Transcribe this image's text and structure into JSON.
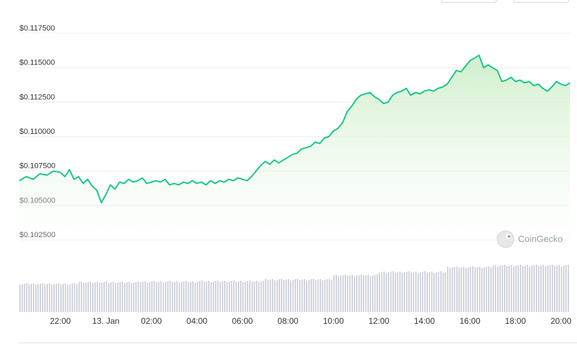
{
  "chart_data": {
    "type": "area",
    "title": "",
    "xlabel": "",
    "ylabel": "",
    "currency_prefix": "$",
    "ylim": [
      0.1015,
      0.1185
    ],
    "y_ticks": [
      "$0.117500",
      "$0.115000",
      "$0.112500",
      "$0.110000",
      "$0.107500",
      "$0.105000",
      "$0.102500"
    ],
    "y_tick_values": [
      0.1175,
      0.115,
      0.1125,
      0.11,
      0.1075,
      0.105,
      0.1025
    ],
    "x_ticks": [
      "22:00",
      "13. Jan",
      "02:00",
      "04:00",
      "06:00",
      "08:00",
      "10:00",
      "12:00",
      "14:00",
      "16:00",
      "18:00",
      "20:00"
    ],
    "x_tick_hours": [
      22,
      24,
      26,
      28,
      30,
      32,
      34,
      36,
      38,
      40,
      42,
      44
    ],
    "xlim_hours": [
      20.2,
      44.4
    ],
    "series": [
      {
        "points": [
          [
            20.2,
            0.1068
          ],
          [
            20.5,
            0.1071
          ],
          [
            20.8,
            0.1069
          ],
          [
            21.1,
            0.1073
          ],
          [
            21.4,
            0.1072
          ],
          [
            21.7,
            0.1075
          ],
          [
            22.0,
            0.1074
          ],
          [
            22.2,
            0.1071
          ],
          [
            22.4,
            0.1076
          ],
          [
            22.6,
            0.1069
          ],
          [
            22.8,
            0.1071
          ],
          [
            23.0,
            0.1066
          ],
          [
            23.2,
            0.1069
          ],
          [
            23.4,
            0.1064
          ],
          [
            23.6,
            0.1061
          ],
          [
            23.8,
            0.1052
          ],
          [
            24.0,
            0.1058
          ],
          [
            24.2,
            0.1065
          ],
          [
            24.4,
            0.1062
          ],
          [
            24.6,
            0.1067
          ],
          [
            24.8,
            0.1066
          ],
          [
            25.0,
            0.1069
          ],
          [
            25.2,
            0.1067
          ],
          [
            25.4,
            0.1068
          ],
          [
            25.6,
            0.107
          ],
          [
            25.8,
            0.1066
          ],
          [
            26.0,
            0.1067
          ],
          [
            26.2,
            0.1068
          ],
          [
            26.4,
            0.1067
          ],
          [
            26.6,
            0.1069
          ],
          [
            26.8,
            0.1065
          ],
          [
            27.0,
            0.1066
          ],
          [
            27.2,
            0.1065
          ],
          [
            27.4,
            0.1067
          ],
          [
            27.6,
            0.1066
          ],
          [
            27.8,
            0.1068
          ],
          [
            28.0,
            0.1066
          ],
          [
            28.2,
            0.1067
          ],
          [
            28.4,
            0.1065
          ],
          [
            28.6,
            0.1068
          ],
          [
            28.8,
            0.1066
          ],
          [
            29.0,
            0.1068
          ],
          [
            29.2,
            0.1067
          ],
          [
            29.4,
            0.1069
          ],
          [
            29.6,
            0.1068
          ],
          [
            29.8,
            0.107
          ],
          [
            30.0,
            0.1069
          ],
          [
            30.2,
            0.1068
          ],
          [
            30.4,
            0.1071
          ],
          [
            30.6,
            0.1075
          ],
          [
            30.8,
            0.1079
          ],
          [
            31.0,
            0.1082
          ],
          [
            31.2,
            0.108
          ],
          [
            31.4,
            0.1083
          ],
          [
            31.6,
            0.1081
          ],
          [
            31.8,
            0.1083
          ],
          [
            32.0,
            0.1085
          ],
          [
            32.2,
            0.1087
          ],
          [
            32.4,
            0.1088
          ],
          [
            32.6,
            0.1091
          ],
          [
            32.8,
            0.1092
          ],
          [
            33.0,
            0.1093
          ],
          [
            33.2,
            0.1096
          ],
          [
            33.4,
            0.1095
          ],
          [
            33.6,
            0.1099
          ],
          [
            33.8,
            0.11
          ],
          [
            34.0,
            0.1104
          ],
          [
            34.2,
            0.1106
          ],
          [
            34.4,
            0.111
          ],
          [
            34.6,
            0.1118
          ],
          [
            34.8,
            0.1122
          ],
          [
            35.0,
            0.1127
          ],
          [
            35.2,
            0.113
          ],
          [
            35.4,
            0.1131
          ],
          [
            35.6,
            0.1132
          ],
          [
            35.8,
            0.1129
          ],
          [
            36.0,
            0.1127
          ],
          [
            36.2,
            0.1124
          ],
          [
            36.4,
            0.1125
          ],
          [
            36.6,
            0.113
          ],
          [
            36.8,
            0.1132
          ],
          [
            37.0,
            0.1133
          ],
          [
            37.2,
            0.1135
          ],
          [
            37.4,
            0.113
          ],
          [
            37.6,
            0.1132
          ],
          [
            37.8,
            0.1131
          ],
          [
            38.0,
            0.1133
          ],
          [
            38.2,
            0.1134
          ],
          [
            38.4,
            0.1133
          ],
          [
            38.6,
            0.1135
          ],
          [
            38.8,
            0.1136
          ],
          [
            39.0,
            0.1138
          ],
          [
            39.2,
            0.1143
          ],
          [
            39.4,
            0.1148
          ],
          [
            39.6,
            0.1147
          ],
          [
            39.8,
            0.1151
          ],
          [
            40.0,
            0.1155
          ],
          [
            40.2,
            0.1157
          ],
          [
            40.4,
            0.1159
          ],
          [
            40.6,
            0.115
          ],
          [
            40.8,
            0.1152
          ],
          [
            41.0,
            0.115
          ],
          [
            41.2,
            0.1148
          ],
          [
            41.4,
            0.114
          ],
          [
            41.6,
            0.1141
          ],
          [
            41.8,
            0.1143
          ],
          [
            42.0,
            0.114
          ],
          [
            42.2,
            0.1141
          ],
          [
            42.4,
            0.1139
          ],
          [
            42.6,
            0.114
          ],
          [
            42.8,
            0.1137
          ],
          [
            43.0,
            0.1138
          ],
          [
            43.2,
            0.1135
          ],
          [
            43.4,
            0.1133
          ],
          [
            43.6,
            0.1136
          ],
          [
            43.8,
            0.114
          ],
          [
            44.0,
            0.1138
          ],
          [
            44.2,
            0.1137
          ],
          [
            44.4,
            0.1139
          ]
        ]
      }
    ],
    "volume": {
      "start_hour": 20.2,
      "step_hours": 0.1,
      "segments": [
        {
          "until_hour": 22.8,
          "level": 0.52
        },
        {
          "until_hour": 25.5,
          "level": 0.55
        },
        {
          "until_hour": 28.0,
          "level": 0.56
        },
        {
          "until_hour": 31.0,
          "level": 0.57
        },
        {
          "until_hour": 34.0,
          "level": 0.6
        },
        {
          "until_hour": 36.0,
          "level": 0.68
        },
        {
          "until_hour": 39.0,
          "level": 0.74
        },
        {
          "until_hour": 41.0,
          "level": 0.83
        },
        {
          "until_hour": 44.5,
          "level": 0.86
        }
      ]
    },
    "grid": true,
    "legend": "none",
    "colors": {
      "line": "#16c784",
      "fill_top": "#c9ecc4",
      "fill_bottom": "#ffffff",
      "volume_bar": "#c5c9d3",
      "grid": "#ececec"
    }
  },
  "watermark": {
    "brand_text": "CoinGecko",
    "icon": "gecko-logo-icon"
  }
}
